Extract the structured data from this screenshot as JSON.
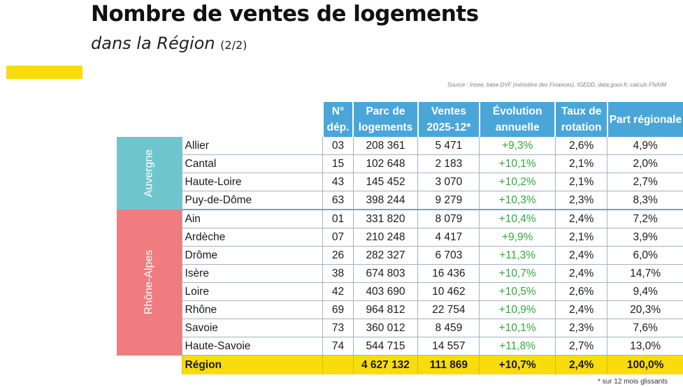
{
  "page": {
    "title": "Nombre de ventes de logements",
    "subtitle": "dans la Région",
    "page_indicator": "(2/2)",
    "source": "Source : Insee, base DVF (ministère des Finances), IGEDD, data.gouv.fr; calculs FNAIM",
    "footnote": "* sur 12 mois glissants"
  },
  "colors": {
    "accent_yellow": "#f9dc0d",
    "header_blue": "#4aa6d9",
    "auvergne_teal": "#6ec6cc",
    "rhone_alpes_red": "#f07c7f",
    "positive_green": "#2eaa3b"
  },
  "table": {
    "headers": {
      "dep": [
        "N°",
        "dép."
      ],
      "parc": [
        "Parc de",
        "logements"
      ],
      "ventes": [
        "Ventes",
        "2025-12*"
      ],
      "evolution": [
        "Évolution",
        "annuelle"
      ],
      "taux": [
        "Taux de",
        "rotation"
      ],
      "part": "Part régionale"
    },
    "groups": {
      "auvergne": "Auvergne",
      "rhone_alpes": "Rhône-Alpes"
    },
    "rows": [
      {
        "name": "Allier",
        "dep": "03",
        "parc": "208 361",
        "ventes": "5 471",
        "evolution": "+9,3%",
        "taux": "2,6%",
        "part": "4,9%"
      },
      {
        "name": "Cantal",
        "dep": "15",
        "parc": "102 648",
        "ventes": "2 183",
        "evolution": "+10,1%",
        "taux": "2,1%",
        "part": "2,0%"
      },
      {
        "name": "Haute-Loire",
        "dep": "43",
        "parc": "145 452",
        "ventes": "3 070",
        "evolution": "+10,2%",
        "taux": "2,1%",
        "part": "2,7%"
      },
      {
        "name": "Puy-de-Dôme",
        "dep": "63",
        "parc": "398 244",
        "ventes": "9 279",
        "evolution": "+10,3%",
        "taux": "2,3%",
        "part": "8,3%"
      },
      {
        "name": "Ain",
        "dep": "01",
        "parc": "331 820",
        "ventes": "8 079",
        "evolution": "+10,4%",
        "taux": "2,4%",
        "part": "7,2%"
      },
      {
        "name": "Ardèche",
        "dep": "07",
        "parc": "210 248",
        "ventes": "4 417",
        "evolution": "+9,9%",
        "taux": "2,1%",
        "part": "3,9%"
      },
      {
        "name": "Drôme",
        "dep": "26",
        "parc": "282 327",
        "ventes": "6 703",
        "evolution": "+11,3%",
        "taux": "2,4%",
        "part": "6,0%"
      },
      {
        "name": "Isère",
        "dep": "38",
        "parc": "674 803",
        "ventes": "16 436",
        "evolution": "+10,7%",
        "taux": "2,4%",
        "part": "14,7%"
      },
      {
        "name": "Loire",
        "dep": "42",
        "parc": "403 690",
        "ventes": "10 462",
        "evolution": "+10,5%",
        "taux": "2,6%",
        "part": "9,4%"
      },
      {
        "name": "Rhône",
        "dep": "69",
        "parc": "964 812",
        "ventes": "22 754",
        "evolution": "+10,9%",
        "taux": "2,4%",
        "part": "20,3%"
      },
      {
        "name": "Savoie",
        "dep": "73",
        "parc": "360 012",
        "ventes": "8 459",
        "evolution": "+10,1%",
        "taux": "2,3%",
        "part": "7,6%"
      },
      {
        "name": "Haute-Savoie",
        "dep": "74",
        "parc": "544 715",
        "ventes": "14 557",
        "evolution": "+11,8%",
        "taux": "2,7%",
        "part": "13,0%"
      }
    ],
    "total": {
      "name": "Région",
      "dep": "",
      "parc": "4 627 132",
      "ventes": "111 869",
      "evolution": "+10,7%",
      "taux": "2,4%",
      "part": "100,0%"
    }
  }
}
